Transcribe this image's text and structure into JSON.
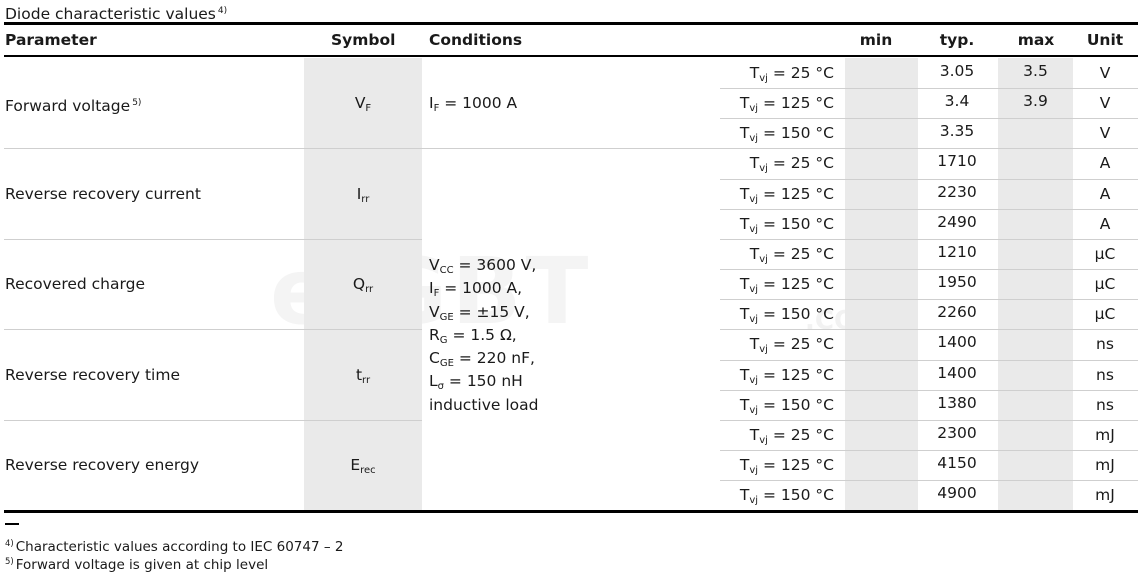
{
  "title": {
    "text": "Diode characteristic values",
    "note": "4)"
  },
  "header": {
    "parameter": "Parameter",
    "symbol": "Symbol",
    "conditions": "Conditions",
    "min": "min",
    "typ": "typ.",
    "max": "max",
    "unit": "Unit"
  },
  "groups": [
    {
      "parameter": "Forward voltage",
      "note": "5)",
      "symbol": {
        "main": "V",
        "sub": "F"
      },
      "condition": {
        "main": "I",
        "sub": "F",
        "rest": " = 1000 A"
      },
      "rows": [
        {
          "temp": "25 °C",
          "min": "",
          "typ": "3.05",
          "max": "3.5",
          "unit": "V"
        },
        {
          "temp": "125 °C",
          "min": "",
          "typ": "3.4",
          "max": "3.9",
          "unit": "V"
        },
        {
          "temp": "150 °C",
          "min": "",
          "typ": "3.35",
          "max": "",
          "unit": "V"
        }
      ]
    },
    {
      "parameter": "Reverse recovery current",
      "note": "",
      "symbol": {
        "main": "I",
        "sub": "rr"
      },
      "rows": [
        {
          "temp": "25 °C",
          "min": "",
          "typ": "1710",
          "max": "",
          "unit": "A"
        },
        {
          "temp": "125 °C",
          "min": "",
          "typ": "2230",
          "max": "",
          "unit": "A"
        },
        {
          "temp": "150 °C",
          "min": "",
          "typ": "2490",
          "max": "",
          "unit": "A"
        }
      ]
    },
    {
      "parameter": "Recovered charge",
      "note": "",
      "symbol": {
        "main": "Q",
        "sub": "rr"
      },
      "rows": [
        {
          "temp": "25 °C",
          "min": "",
          "typ": "1210",
          "max": "",
          "unit": "µC"
        },
        {
          "temp": "125 °C",
          "min": "",
          "typ": "1950",
          "max": "",
          "unit": "µC"
        },
        {
          "temp": "150 °C",
          "min": "",
          "typ": "2260",
          "max": "",
          "unit": "µC"
        }
      ]
    },
    {
      "parameter": "Reverse recovery time",
      "note": "",
      "symbol": {
        "main": "t",
        "sub": "rr"
      },
      "rows": [
        {
          "temp": "25 °C",
          "min": "",
          "typ": "1400",
          "max": "",
          "unit": "ns"
        },
        {
          "temp": "125 °C",
          "min": "",
          "typ": "1400",
          "max": "",
          "unit": "ns"
        },
        {
          "temp": "150 °C",
          "min": "",
          "typ": "1380",
          "max": "",
          "unit": "ns"
        }
      ]
    },
    {
      "parameter": "Reverse recovery energy",
      "note": "",
      "symbol": {
        "main": "E",
        "sub": "rec"
      },
      "rows": [
        {
          "temp": "25 °C",
          "min": "",
          "typ": "2300",
          "max": "",
          "unit": "mJ"
        },
        {
          "temp": "125 °C",
          "min": "",
          "typ": "4150",
          "max": "",
          "unit": "mJ"
        },
        {
          "temp": "150 °C",
          "min": "",
          "typ": "4900",
          "max": "",
          "unit": "mJ"
        }
      ]
    }
  ],
  "temp_label": {
    "main": "T",
    "sub": "vj",
    "eq": " = "
  },
  "shared_conditions": [
    {
      "main": "V",
      "sub": "CC",
      "rest": " = 3600 V,"
    },
    {
      "main": "I",
      "sub": "F",
      "rest": " = 1000 A,"
    },
    {
      "main": "V",
      "sub": "GE",
      "rest": " = ±15 V,"
    },
    {
      "main": "R",
      "sub": "G",
      "rest": " = 1.5 Ω,"
    },
    {
      "main": "C",
      "sub": "GE",
      "rest": " = 220 nF,"
    },
    {
      "main": "L",
      "sub": "σ",
      "rest": " = 150 nH"
    },
    {
      "main": "inductive load",
      "sub": "",
      "rest": ""
    }
  ],
  "watermark": {
    "text": "eiGBT",
    "suffix": ".COM"
  },
  "footnotes": [
    {
      "mark": "4)",
      "text": "Characteristic values according to IEC 60747 – 2"
    },
    {
      "mark": "5)",
      "text": "Forward voltage is given at chip level"
    }
  ]
}
